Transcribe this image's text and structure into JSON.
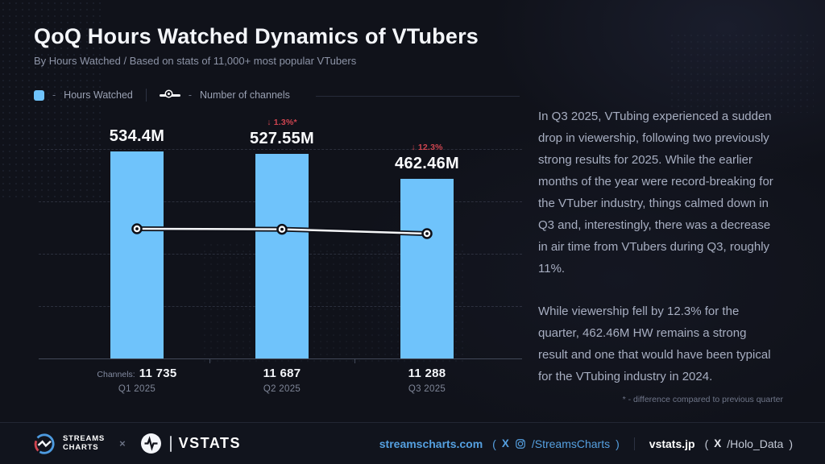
{
  "header": {
    "title": "QoQ Hours Watched Dynamics of VTubers",
    "subtitle": "By Hours Watched / Based on stats of 11,000+ most popular VTubers"
  },
  "legend": {
    "dash": "-",
    "hours_watched": "Hours Watched",
    "channels": "Number of channels"
  },
  "chart_data": {
    "type": "bar+line",
    "title": "QoQ Hours Watched Dynamics of VTubers",
    "categories": [
      "Q1 2025",
      "Q2 2025",
      "Q3 2025"
    ],
    "series": [
      {
        "name": "Hours Watched",
        "type": "bar",
        "values_millions": [
          534.4,
          527.55,
          462.46
        ],
        "labels": [
          "534.4M",
          "527.55M",
          "462.46M"
        ],
        "change_labels": [
          "",
          "↓ 1.3%*",
          "↓ 12.3%"
        ]
      },
      {
        "name": "Number of channels",
        "type": "line",
        "values": [
          11735,
          11687,
          11288
        ],
        "labels": [
          "11 735",
          "11 687",
          "11 288"
        ]
      }
    ],
    "channels_prefix": "Channels:",
    "ylim_millions": [
      0,
      540
    ],
    "grid": "dashed-horizontal",
    "legend_position": "top-left"
  },
  "insight": {
    "paragraph1": "In Q3 2025, VTubing experienced a sudden drop in viewership, following two previously strong results for 2025. While the earlier months of the year were record-breaking for the VTuber industry, things calmed down in Q3 and, interestingly, there was a decrease in air time from VTubers during Q3, roughly 11%.",
    "paragraph2": "While viewership fell by 12.3% for the quarter, 462.46M HW remains a strong result and one that would have been typical for the VTubing industry in 2024.",
    "footnote": "* - difference compared to previous quarter"
  },
  "footer": {
    "streams_charts_line1": "STREAMS",
    "streams_charts_line2": "CHARTS",
    "cross": "×",
    "vstats_wordmark": "VSTATS",
    "site1": {
      "domain": "streamscharts.com",
      "paren_open": "(",
      "x_label": "X",
      "handle": "/StreamsCharts",
      "paren_close": ")"
    },
    "site2": {
      "domain": "vstats.jp",
      "paren_open": "(",
      "x_label": "X",
      "handle": "/Holo_Data",
      "paren_close": ")"
    }
  },
  "colors": {
    "bar": "#6fc3fb",
    "decline": "#cf4550",
    "link": "#55a0e0",
    "background": "#10121a"
  }
}
